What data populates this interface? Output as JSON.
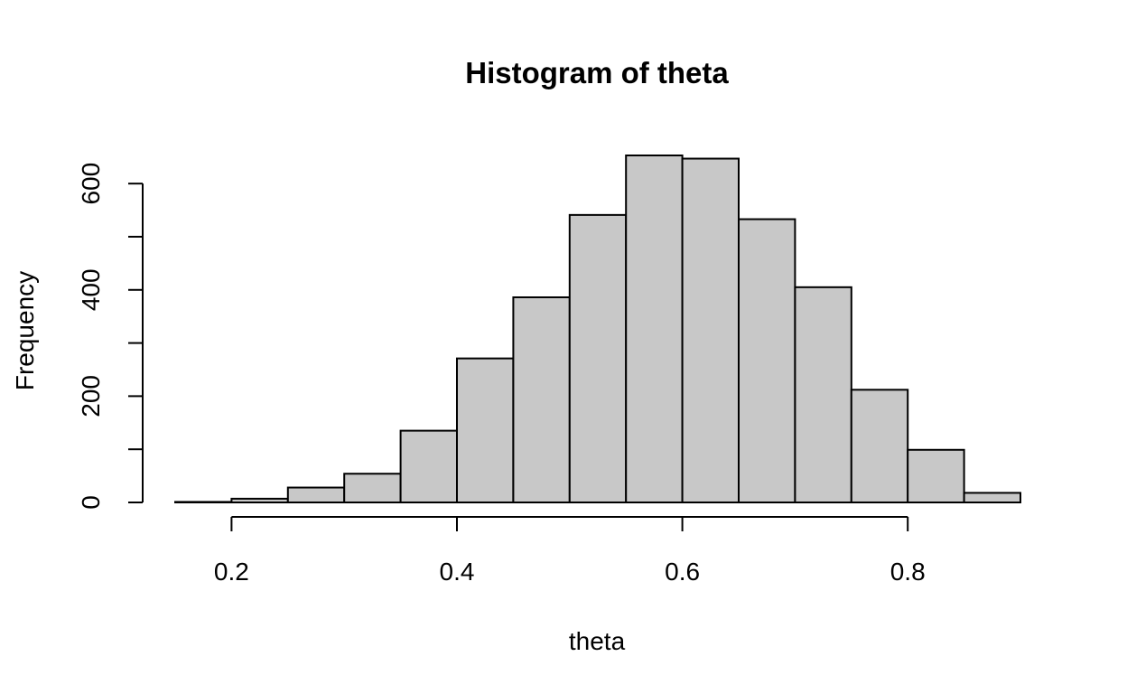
{
  "chart_data": {
    "type": "bar",
    "subtype": "histogram",
    "title": "Histogram of theta",
    "xlabel": "theta",
    "ylabel": "Frequency",
    "bin_edges": [
      0.15,
      0.2,
      0.25,
      0.3,
      0.35,
      0.4,
      0.45,
      0.5,
      0.55,
      0.6,
      0.65,
      0.7,
      0.75,
      0.8,
      0.85,
      0.9
    ],
    "values": [
      1,
      7,
      28,
      54,
      135,
      271,
      386,
      541,
      653,
      647,
      533,
      405,
      212,
      99,
      18
    ],
    "xlim": [
      0.15,
      0.9
    ],
    "ylim": [
      0,
      653
    ],
    "x_ticks": [
      0.2,
      0.4,
      0.6,
      0.8
    ],
    "x_tick_labels": [
      "0.2",
      "0.4",
      "0.6",
      "0.8"
    ],
    "y_ticks": [
      0,
      100,
      200,
      300,
      400,
      500,
      600
    ],
    "y_tick_labels": [
      "0",
      "200",
      "400",
      "600"
    ],
    "y_labeled_ticks": [
      0,
      200,
      400,
      600
    ],
    "grid": false,
    "legend": "none",
    "bar_fill": "#c8c8c8",
    "bar_stroke": "#000000"
  }
}
